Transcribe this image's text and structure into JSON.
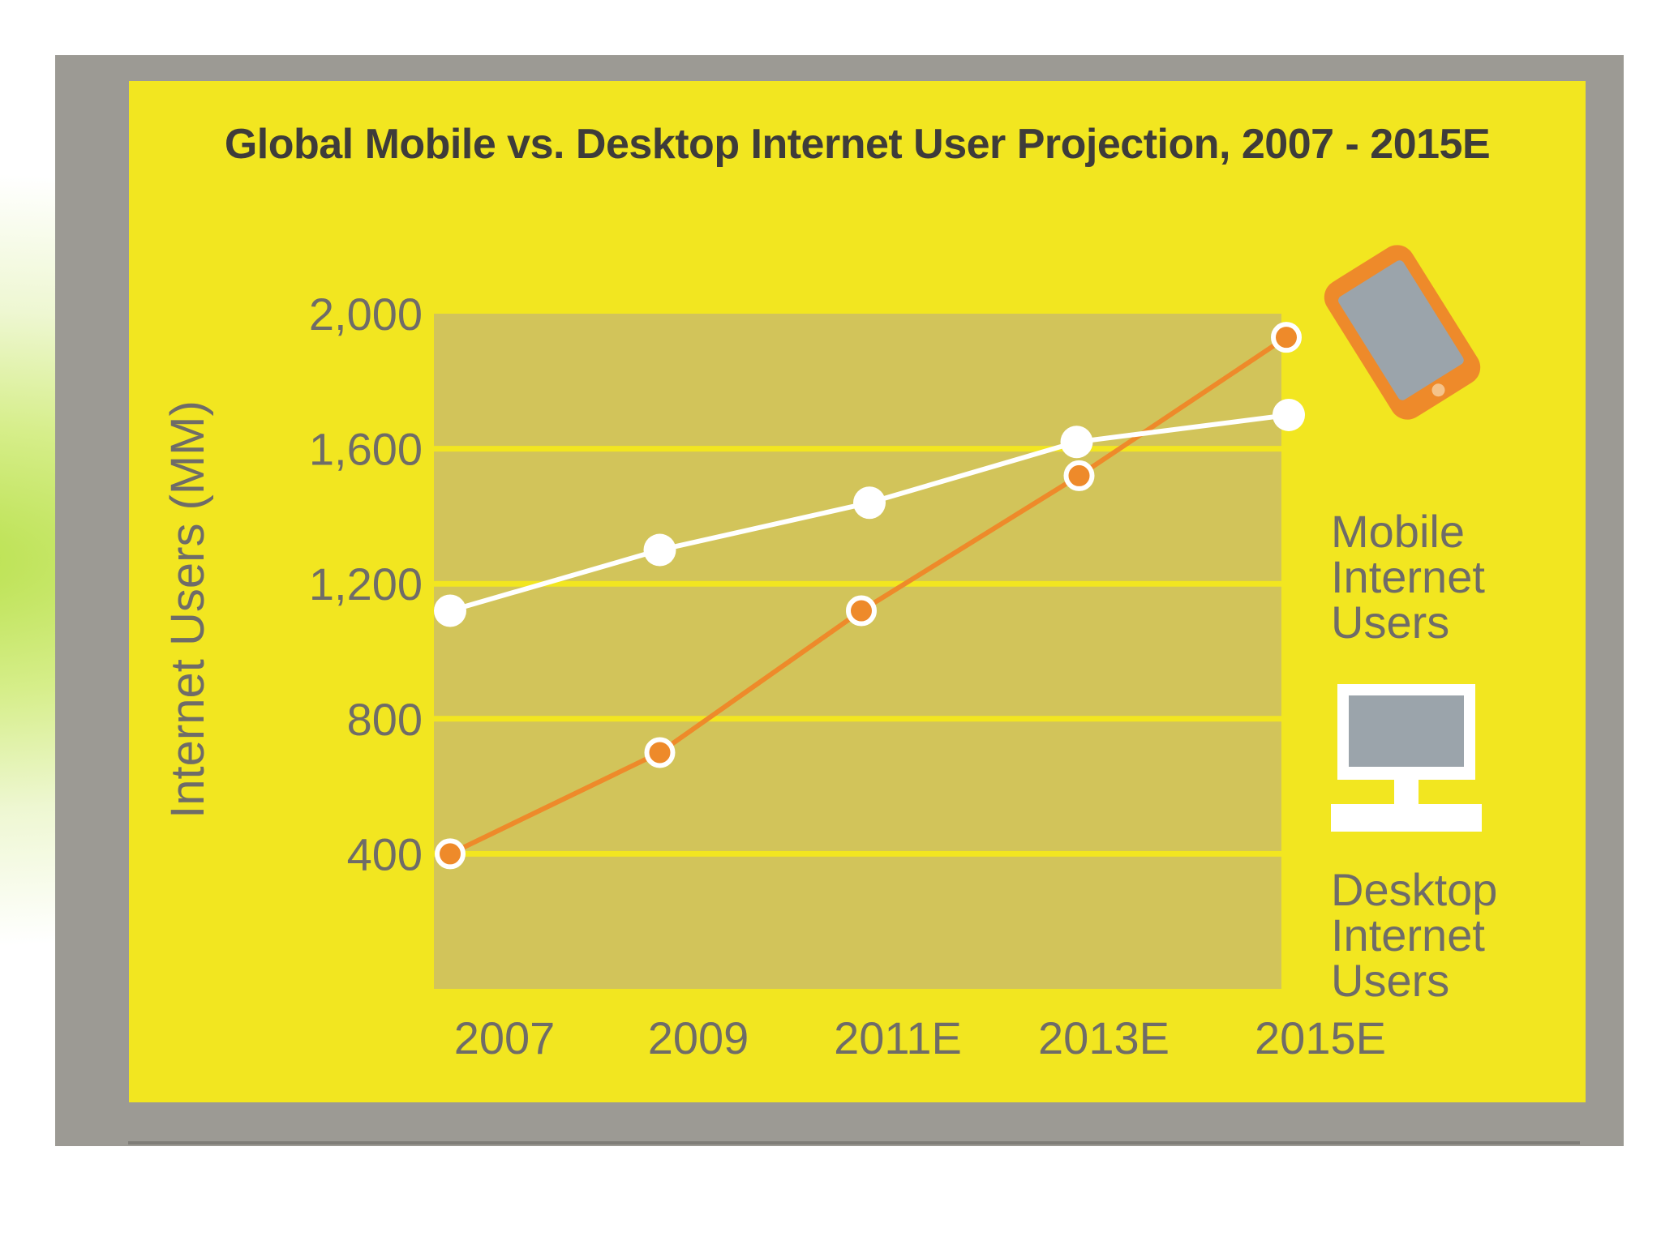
{
  "chart_data": {
    "type": "line",
    "title": "Global Mobile vs. Desktop Internet User Projection, 2007 - 2015E",
    "xlabel": "",
    "ylabel": "Internet Users (MM)",
    "categories": [
      "2007",
      "2009",
      "2011E",
      "2013E",
      "2015E"
    ],
    "yticks": [
      400,
      800,
      1200,
      1600,
      2000
    ],
    "ytick_labels": [
      "400",
      "800",
      "1,200",
      "1,600",
      "2,000"
    ],
    "ylim": [
      0,
      2000
    ],
    "grid": true,
    "legend_position": "right",
    "series": [
      {
        "name": "Mobile Internet Users",
        "color": "#ee8a2a",
        "values": [
          400,
          700,
          1120,
          1520,
          1930
        ]
      },
      {
        "name": "Desktop Internet Users",
        "color": "#ffffff",
        "values": [
          1120,
          1300,
          1440,
          1620,
          1700
        ]
      }
    ]
  },
  "legend": {
    "mobile_icon": "smartphone-icon",
    "desktop_icon": "desktop-computer-icon"
  },
  "colors": {
    "panel": "#f2e620",
    "plot_area": "#d2c45a",
    "frame": "#9c9a94",
    "text": "#6f6c68"
  }
}
